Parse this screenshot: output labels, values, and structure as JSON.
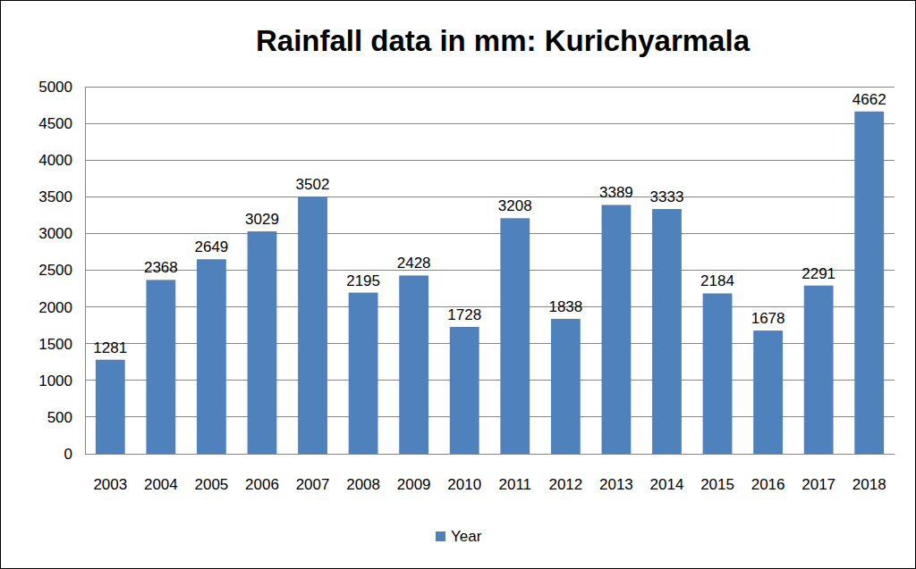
{
  "chart_data": {
    "type": "bar",
    "title": "Rainfall data in mm: Kurichyarmala",
    "categories": [
      "2003",
      "2004",
      "2005",
      "2006",
      "2007",
      "2008",
      "2009",
      "2010",
      "2011",
      "2012",
      "2013",
      "2014",
      "2015",
      "2016",
      "2017",
      "2018"
    ],
    "series": [
      {
        "name": "Year",
        "color": "#4f81bd",
        "values": [
          1281,
          2368,
          2649,
          3029,
          3502,
          2195,
          2428,
          1728,
          3208,
          1838,
          3389,
          3333,
          2184,
          1678,
          2291,
          4662
        ]
      }
    ],
    "ylim": [
      0,
      5000
    ],
    "yticks": [
      0,
      500,
      1000,
      1500,
      2000,
      2500,
      3000,
      3500,
      4000,
      4500,
      5000
    ],
    "grid": true,
    "data_labels": true,
    "legend": "bottom"
  }
}
